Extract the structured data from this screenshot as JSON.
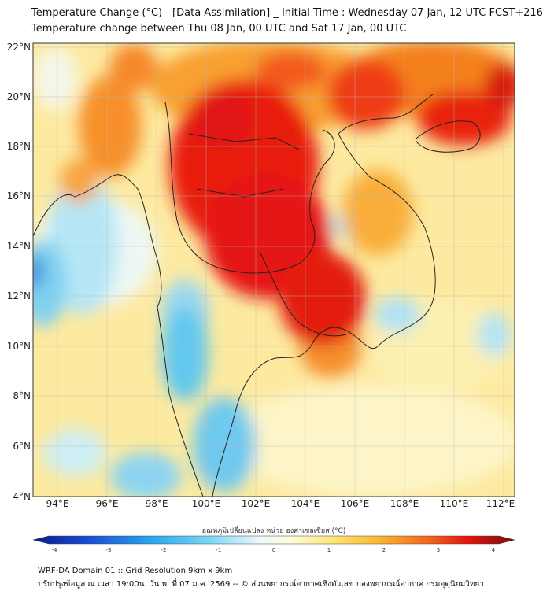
{
  "header": {
    "title_line1": "Temperature Change (°C) - [Data Assimilation] _ Initial Time : Wednesday 07 Jan, 12 UTC FCST+216",
    "title_line2": "Temperature change between Thu 08 Jan, 00 UTC and Sat 17 Jan, 00 UTC"
  },
  "map": {
    "lon_range": [
      93,
      112.5
    ],
    "lat_range": [
      4,
      22.2
    ],
    "lon_ticks": [
      "94°E",
      "96°E",
      "98°E",
      "100°E",
      "102°E",
      "104°E",
      "106°E",
      "108°E",
      "110°E",
      "112°E"
    ],
    "lat_ticks": [
      "4°N",
      "6°N",
      "8°N",
      "10°N",
      "12°N",
      "14°N",
      "16°N",
      "18°N",
      "20°N",
      "22°N"
    ]
  },
  "colorbar": {
    "title": "อุณหภูมิเปลี่ยนแปลง หน่วย องศาเซลเซียส (°C)",
    "ticks": [
      "-4",
      "-3",
      "-2",
      "-1",
      "0",
      "1",
      "2",
      "3",
      "4"
    ]
  },
  "footer": {
    "line1": "WRF-DA Domain 01 :: Grid Resolution 9km x 9km",
    "line2": "ปรับปรุงข้อมูล ณ เวลา 19:00น. วัน พ. ที่ 07 ม.ค. 2569 -- © ส่วนพยากรณ์อากาศเชิงตัวเลข กองพยากรณ์อากาศ กรมอุตุนิยมวิทยา"
  }
}
